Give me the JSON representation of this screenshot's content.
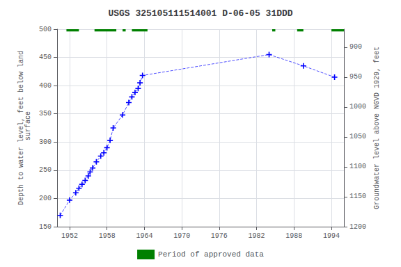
{
  "chart_data": {
    "type": "line",
    "title": "USGS 325105111514001 D-06-05 31DDD",
    "ylabel": "Depth to water level, feet below land\n surface",
    "y2label": "Groundwater level above NGVD 1929, feet",
    "xlim": [
      1950,
      1996
    ],
    "xticks": [
      1952,
      1958,
      1964,
      1970,
      1976,
      1982,
      1988,
      1994
    ],
    "ylim": [
      150,
      500
    ],
    "yticks": [
      150,
      200,
      250,
      300,
      350,
      400,
      450,
      500
    ],
    "y2lim": [
      1200,
      870
    ],
    "y2ticks": [
      1200,
      1150,
      1100,
      1050,
      1000,
      950,
      900
    ],
    "grid": true,
    "legend": "bottom",
    "x": [
      1950.5,
      1952.0,
      1953.0,
      1953.5,
      1954.0,
      1954.5,
      1955.0,
      1955.3,
      1955.7,
      1956.3,
      1957.0,
      1957.5,
      1958.0,
      1958.5,
      1959.0,
      1960.5,
      1961.5,
      1962.0,
      1962.5,
      1963.0,
      1963.3,
      1963.7,
      1984.0,
      1989.5,
      1994.5
    ],
    "series": [
      {
        "type": "line",
        "color": "#0000ff",
        "marker": "+",
        "line_style": "dashed",
        "values": [
          170,
          197,
          210,
          218,
          225,
          232,
          240,
          247,
          254,
          265,
          275,
          281,
          290,
          303,
          325,
          348,
          370,
          380,
          388,
          395,
          405,
          418,
          455,
          435,
          415
        ]
      },
      {
        "type": "range",
        "name": "Period of approved data",
        "color": "#008000",
        "y_span": [
          496,
          500
        ],
        "ranges": [
          [
            1951.5,
            1953.5
          ],
          [
            1956.0,
            1959.5
          ],
          [
            1960.5,
            1961.0
          ],
          [
            1962.0,
            1964.5
          ],
          [
            1984.5,
            1985.0
          ],
          [
            1988.5,
            1989.5
          ],
          [
            1994.0,
            1996.0
          ]
        ]
      }
    ]
  }
}
